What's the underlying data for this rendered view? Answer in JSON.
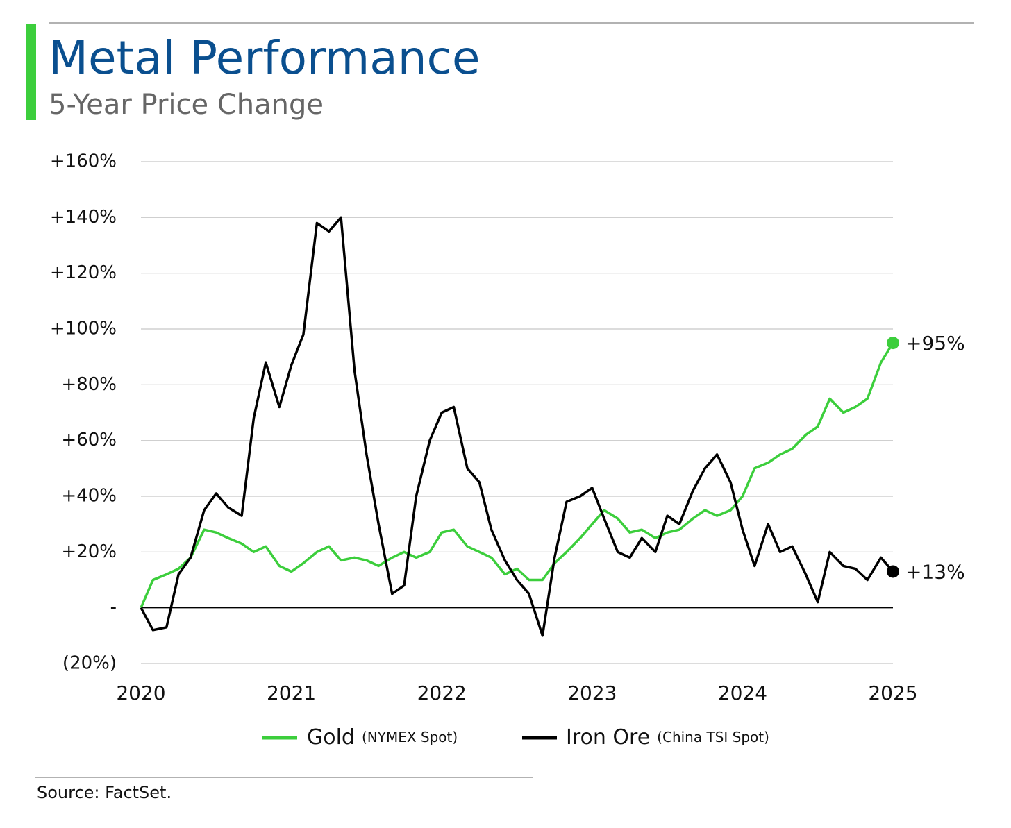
{
  "chart_data": {
    "type": "line",
    "title": "Metal Performance",
    "subtitle": "5-Year Price Change",
    "source": "Source: FactSet.",
    "x": [
      2020,
      2020.08,
      2020.17,
      2020.25,
      2020.33,
      2020.42,
      2020.5,
      2020.58,
      2020.67,
      2020.75,
      2020.83,
      2020.92,
      2021,
      2021.08,
      2021.17,
      2021.25,
      2021.33,
      2021.42,
      2021.5,
      2021.58,
      2021.67,
      2021.75,
      2021.83,
      2021.92,
      2022,
      2022.08,
      2022.17,
      2022.25,
      2022.33,
      2022.42,
      2022.5,
      2022.58,
      2022.67,
      2022.75,
      2022.83,
      2022.92,
      2023,
      2023.08,
      2023.17,
      2023.25,
      2023.33,
      2023.42,
      2023.5,
      2023.58,
      2023.67,
      2023.75,
      2023.83,
      2023.92,
      2024,
      2024.08,
      2024.17,
      2024.25,
      2024.33,
      2024.42,
      2024.5,
      2024.58,
      2024.67,
      2024.75,
      2024.83,
      2024.92,
      2025
    ],
    "series": [
      {
        "name": "Gold",
        "note": "(NYMEX Spot)",
        "color": "#3cce3c",
        "end_label": "+95%",
        "values": [
          0,
          10,
          12,
          14,
          18,
          28,
          27,
          25,
          23,
          20,
          22,
          15,
          13,
          16,
          20,
          22,
          17,
          18,
          17,
          15,
          18,
          20,
          18,
          20,
          27,
          28,
          22,
          20,
          18,
          12,
          14,
          10,
          10,
          16,
          20,
          25,
          30,
          35,
          32,
          27,
          28,
          25,
          27,
          28,
          32,
          35,
          33,
          35,
          40,
          50,
          52,
          55,
          57,
          62,
          65,
          75,
          70,
          72,
          75,
          88,
          95
        ]
      },
      {
        "name": "Iron Ore",
        "note": "(China TSI Spot)",
        "color": "#000000",
        "end_label": "+13%",
        "values": [
          0,
          -8,
          -7,
          12,
          18,
          35,
          41,
          36,
          33,
          68,
          88,
          72,
          87,
          98,
          138,
          135,
          140,
          85,
          55,
          30,
          5,
          8,
          40,
          60,
          70,
          72,
          50,
          45,
          28,
          17,
          10,
          5,
          -10,
          18,
          38,
          40,
          43,
          32,
          20,
          18,
          25,
          20,
          33,
          30,
          42,
          50,
          55,
          45,
          28,
          15,
          30,
          20,
          22,
          12,
          2,
          20,
          15,
          14,
          10,
          18,
          13
        ]
      }
    ],
    "xlim": [
      2020,
      2025
    ],
    "xticks": [
      2020,
      2021,
      2022,
      2023,
      2024,
      2025
    ],
    "ylim": [
      -20,
      160
    ],
    "yticks": [
      {
        "value": -20,
        "label": "(20%)"
      },
      {
        "value": 0,
        "label": "-"
      },
      {
        "value": 20,
        "label": "+20%"
      },
      {
        "value": 40,
        "label": "+40%"
      },
      {
        "value": 60,
        "label": "+60%"
      },
      {
        "value": 80,
        "label": "+80%"
      },
      {
        "value": 100,
        "label": "+100%"
      },
      {
        "value": 120,
        "label": "+120%"
      },
      {
        "value": 140,
        "label": "+140%"
      },
      {
        "value": 160,
        "label": "+160%"
      }
    ],
    "grid": true
  }
}
